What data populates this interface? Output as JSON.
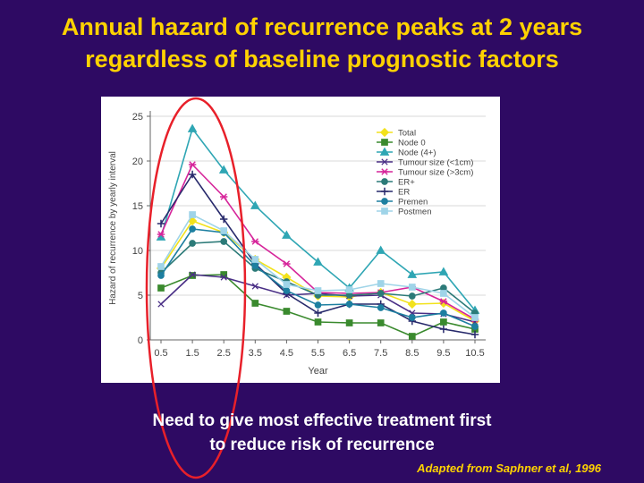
{
  "slide": {
    "title_line1": "Annual hazard of recurrence peaks at 2 years",
    "title_line2": "regardless of baseline prognostic factors",
    "note_line1": "Need to give most effective treatment first",
    "note_line2": "to reduce risk of recurrence",
    "source": "Adapted from Saphner et al, 1996"
  },
  "colors": {
    "background": "#2e0a63",
    "title": "#ffd200",
    "highlight_ellipse": "#e8202a"
  },
  "chart_data": {
    "type": "line",
    "xlabel": "Year",
    "ylabel": "Hazard of recurrence by yearly interval",
    "x": [
      0.5,
      1.5,
      2.5,
      3.5,
      4.5,
      5.5,
      6.5,
      7.5,
      8.5,
      9.5,
      10.5
    ],
    "x_tick_labels": [
      "0.5",
      "1.5",
      "2.5",
      "3.5",
      "4.5",
      "5.5",
      "6.5",
      "7.5",
      "8.5",
      "9.5",
      "10.5"
    ],
    "ylim": [
      0,
      25
    ],
    "y_ticks": [
      0,
      5,
      10,
      15,
      20,
      25
    ],
    "grid": "horizontal",
    "legend_position": "top-right",
    "series": [
      {
        "name": "Total",
        "color": "#f2e21c",
        "marker": "diamond",
        "values": [
          8,
          13.3,
          12,
          9,
          7,
          4.9,
          4.8,
          5.3,
          4,
          4.1,
          2.1
        ]
      },
      {
        "name": "Node 0",
        "color": "#3a8a2e",
        "marker": "square",
        "values": [
          5.8,
          7.2,
          7.3,
          4.1,
          3.2,
          2,
          1.9,
          1.9,
          0.4,
          2,
          1.2
        ]
      },
      {
        "name": "Node (4+)",
        "color": "#2fa6b4",
        "marker": "triangle",
        "values": [
          11.5,
          23.6,
          19,
          15,
          11.7,
          8.7,
          5.8,
          10,
          7.3,
          7.6,
          3.3
        ]
      },
      {
        "name": "Tumour size (<1cm)",
        "color": "#4a2f86",
        "marker": "x",
        "values": [
          4,
          7.3,
          7,
          6,
          5,
          5.2,
          4.9,
          5,
          3,
          2.9,
          2
        ]
      },
      {
        "name": "Tumour size (>3cm)",
        "color": "#d6259a",
        "marker": "star",
        "values": [
          11.8,
          19.6,
          16,
          11,
          8.5,
          5.3,
          5.2,
          5.3,
          5.9,
          4.3,
          2.3
        ]
      },
      {
        "name": "ER+",
        "color": "#2c7a78",
        "marker": "circle",
        "values": [
          7.5,
          10.8,
          11,
          8,
          6.5,
          5,
          5,
          5.2,
          4.9,
          5.8,
          3
        ]
      },
      {
        "name": "ER",
        "color": "#27296b",
        "marker": "plus",
        "values": [
          13,
          18.5,
          13.5,
          8.5,
          5.2,
          3,
          4,
          4,
          2.1,
          1.2,
          0.6
        ]
      },
      {
        "name": "Premen",
        "color": "#1d7fa0",
        "marker": "circle",
        "values": [
          7.2,
          12.4,
          12,
          8.3,
          5.5,
          3.9,
          4,
          3.6,
          2.5,
          3,
          1.5
        ]
      },
      {
        "name": "Postmen",
        "color": "#9fd4e8",
        "marker": "square",
        "values": [
          8.2,
          14,
          12.2,
          9,
          6.2,
          5.5,
          5.6,
          6.3,
          5.9,
          5.2,
          2.5
        ]
      }
    ]
  }
}
